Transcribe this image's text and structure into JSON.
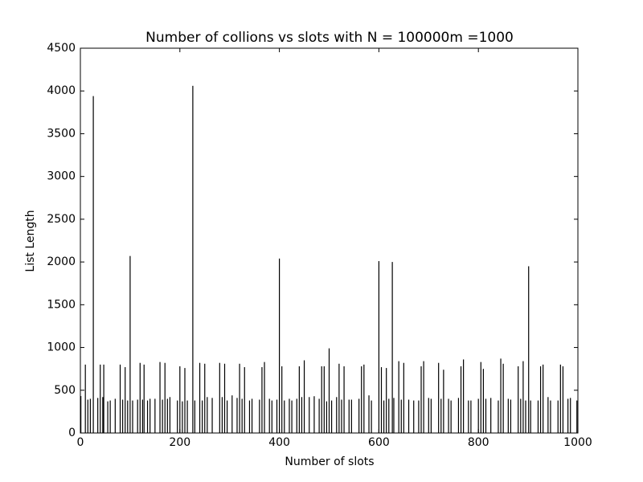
{
  "chart_data": {
    "type": "bar",
    "title": "Number of collions vs slots with N = 100000m =1000",
    "x_label": "Number of slots",
    "y_label": "List Length",
    "color": "#000000",
    "x": [
      1,
      10,
      15,
      20,
      26,
      35,
      40,
      45,
      47,
      55,
      60,
      70,
      80,
      85,
      90,
      95,
      100,
      105,
      115,
      120,
      125,
      128,
      135,
      140,
      150,
      160,
      165,
      170,
      175,
      180,
      195,
      200,
      205,
      210,
      215,
      226,
      230,
      240,
      245,
      250,
      255,
      265,
      280,
      285,
      290,
      295,
      305,
      315,
      320,
      325,
      330,
      340,
      345,
      360,
      365,
      370,
      380,
      385,
      395,
      400,
      405,
      410,
      420,
      425,
      435,
      440,
      445,
      450,
      460,
      470,
      480,
      485,
      490,
      495,
      500,
      505,
      515,
      520,
      525,
      530,
      540,
      545,
      560,
      565,
      570,
      580,
      585,
      600,
      605,
      610,
      615,
      620,
      627,
      630,
      640,
      645,
      650,
      660,
      670,
      680,
      685,
      690,
      700,
      705,
      720,
      725,
      730,
      740,
      745,
      760,
      765,
      770,
      780,
      785,
      800,
      805,
      810,
      815,
      825,
      840,
      845,
      850,
      860,
      865,
      880,
      885,
      890,
      895,
      901,
      905,
      920,
      925,
      930,
      940,
      945,
      960,
      965,
      970,
      980,
      985,
      998
    ],
    "values": [
      432,
      800,
      390,
      400,
      3940,
      410,
      800,
      420,
      800,
      370,
      380,
      400,
      800,
      390,
      770,
      380,
      2070,
      380,
      390,
      820,
      390,
      800,
      380,
      400,
      400,
      830,
      390,
      820,
      400,
      420,
      380,
      780,
      370,
      760,
      380,
      4060,
      380,
      820,
      380,
      810,
      420,
      410,
      820,
      420,
      810,
      380,
      440,
      410,
      810,
      400,
      770,
      380,
      400,
      390,
      770,
      830,
      400,
      380,
      390,
      2040,
      780,
      380,
      400,
      380,
      400,
      780,
      420,
      850,
      420,
      430,
      400,
      780,
      780,
      370,
      990,
      380,
      420,
      810,
      390,
      780,
      390,
      390,
      400,
      780,
      800,
      440,
      380,
      2010,
      770,
      380,
      760,
      400,
      2000,
      410,
      840,
      390,
      820,
      390,
      380,
      380,
      780,
      840,
      410,
      400,
      820,
      400,
      740,
      400,
      380,
      410,
      780,
      860,
      380,
      380,
      400,
      830,
      750,
      400,
      410,
      380,
      870,
      810,
      400,
      390,
      780,
      400,
      840,
      380,
      1950,
      380,
      380,
      780,
      800,
      420,
      380,
      380,
      800,
      780,
      400,
      410,
      380
    ],
    "xlim": [
      0,
      1000
    ],
    "xticks": [
      0,
      200,
      400,
      600,
      800,
      1000
    ],
    "ylim": [
      0,
      4500
    ],
    "yticks": [
      0,
      500,
      1000,
      1500,
      2000,
      2500,
      3000,
      3500,
      4000,
      4500
    ]
  }
}
